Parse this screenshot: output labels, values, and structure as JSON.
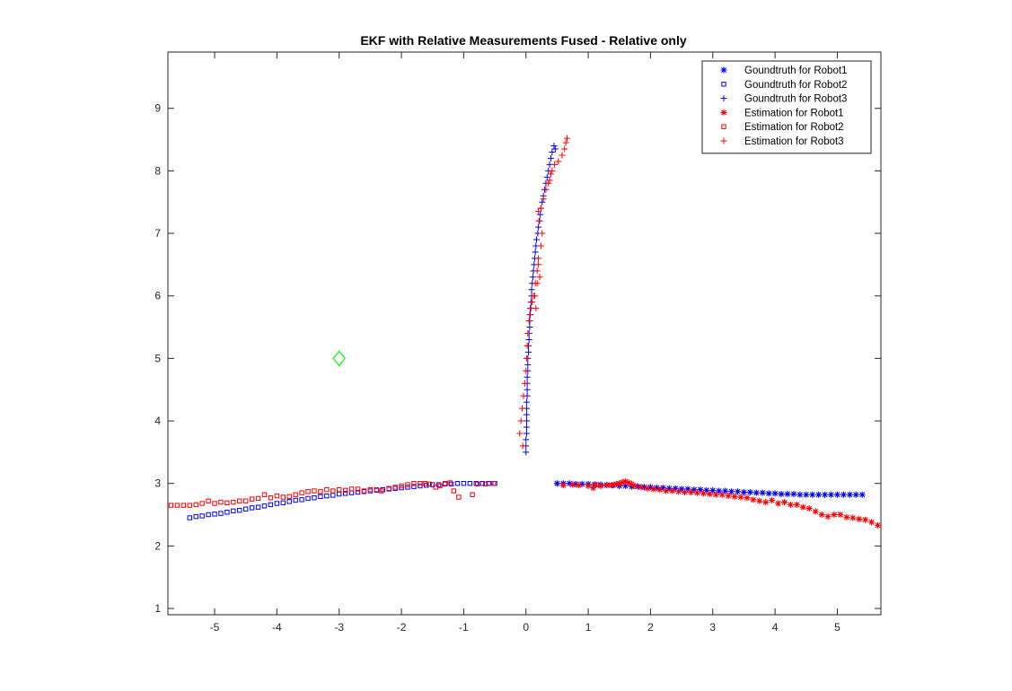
{
  "chart_data": {
    "type": "scatter",
    "title": "EKF with Relative Measurements Fused - Relative only",
    "xlabel": "",
    "ylabel": "",
    "xlim": [
      -5.75,
      5.7
    ],
    "ylim": [
      0.9,
      9.9
    ],
    "xticks": [
      -5,
      -4,
      -3,
      -2,
      -1,
      0,
      1,
      2,
      3,
      4,
      5
    ],
    "yticks": [
      1,
      2,
      3,
      4,
      5,
      6,
      7,
      8,
      9
    ],
    "grid": false,
    "legend_position": "top-right",
    "colors": {
      "blue": "#0000ff",
      "red": "#ff0000",
      "green": "#00ff00",
      "axis": "#262626"
    },
    "series": [
      {
        "name": "Goundtruth for Robot1",
        "marker": "asterisk",
        "color": "#0000ff",
        "x": [
          0.5,
          0.6,
          0.7,
          0.8,
          0.9,
          1.0,
          1.1,
          1.2,
          1.3,
          1.4,
          1.5,
          1.6,
          1.7,
          1.8,
          1.9,
          2.0,
          2.1,
          2.2,
          2.3,
          2.4,
          2.5,
          2.6,
          2.7,
          2.8,
          2.9,
          3.0,
          3.1,
          3.2,
          3.3,
          3.4,
          3.5,
          3.6,
          3.7,
          3.8,
          3.9,
          4.0,
          4.1,
          4.2,
          4.3,
          4.4,
          4.5,
          4.6,
          4.7,
          4.8,
          4.9,
          5.0,
          5.1,
          5.2,
          5.3,
          5.4
        ],
        "y": [
          3.0,
          3.0,
          3.0,
          2.99,
          2.99,
          2.99,
          2.98,
          2.98,
          2.97,
          2.97,
          2.96,
          2.96,
          2.95,
          2.95,
          2.94,
          2.94,
          2.93,
          2.93,
          2.92,
          2.92,
          2.91,
          2.91,
          2.9,
          2.9,
          2.89,
          2.89,
          2.88,
          2.88,
          2.87,
          2.87,
          2.86,
          2.86,
          2.85,
          2.85,
          2.84,
          2.84,
          2.83,
          2.83,
          2.83,
          2.82,
          2.82,
          2.82,
          2.82,
          2.82,
          2.82,
          2.82,
          2.82,
          2.82,
          2.82,
          2.82
        ]
      },
      {
        "name": "Goundtruth for Robot2",
        "marker": "square",
        "color": "#0000ff",
        "x": [
          -0.5,
          -0.6,
          -0.7,
          -0.8,
          -0.9,
          -1.0,
          -1.1,
          -1.2,
          -1.3,
          -1.4,
          -1.5,
          -1.6,
          -1.7,
          -1.8,
          -1.9,
          -2.0,
          -2.1,
          -2.2,
          -2.3,
          -2.4,
          -2.5,
          -2.6,
          -2.7,
          -2.8,
          -2.9,
          -3.0,
          -3.1,
          -3.2,
          -3.3,
          -3.4,
          -3.5,
          -3.6,
          -3.7,
          -3.8,
          -3.9,
          -4.0,
          -4.1,
          -4.2,
          -4.3,
          -4.4,
          -4.5,
          -4.6,
          -4.7,
          -4.8,
          -4.9,
          -5.0,
          -5.1,
          -5.2,
          -5.3,
          -5.4
        ],
        "y": [
          3.0,
          3.0,
          3.0,
          3.0,
          3.0,
          3.0,
          3.0,
          2.99,
          2.99,
          2.98,
          2.98,
          2.97,
          2.96,
          2.95,
          2.94,
          2.93,
          2.92,
          2.91,
          2.9,
          2.89,
          2.88,
          2.87,
          2.86,
          2.85,
          2.84,
          2.83,
          2.81,
          2.8,
          2.79,
          2.77,
          2.76,
          2.74,
          2.73,
          2.71,
          2.69,
          2.68,
          2.66,
          2.64,
          2.62,
          2.61,
          2.59,
          2.57,
          2.56,
          2.54,
          2.52,
          2.51,
          2.5,
          2.48,
          2.47,
          2.45
        ]
      },
      {
        "name": "Goundtruth for Robot3",
        "marker": "plus",
        "color": "#0000ff",
        "x": [
          0.0,
          0.0,
          0.0,
          0.01,
          0.01,
          0.01,
          0.01,
          0.01,
          0.01,
          0.02,
          0.02,
          0.02,
          0.02,
          0.03,
          0.03,
          0.03,
          0.04,
          0.04,
          0.05,
          0.05,
          0.06,
          0.06,
          0.07,
          0.07,
          0.08,
          0.09,
          0.09,
          0.1,
          0.11,
          0.12,
          0.13,
          0.14,
          0.15,
          0.16,
          0.17,
          0.19,
          0.2,
          0.21,
          0.23,
          0.24,
          0.26,
          0.28,
          0.3,
          0.32,
          0.34,
          0.36,
          0.38,
          0.4,
          0.42,
          0.45,
          0.47
        ],
        "y": [
          3.5,
          3.6,
          3.7,
          3.8,
          3.9,
          4.0,
          4.1,
          4.2,
          4.3,
          4.4,
          4.5,
          4.6,
          4.7,
          4.8,
          4.9,
          5.0,
          5.1,
          5.2,
          5.3,
          5.4,
          5.5,
          5.6,
          5.7,
          5.8,
          5.9,
          6.0,
          6.1,
          6.2,
          6.3,
          6.4,
          6.5,
          6.6,
          6.7,
          6.8,
          6.9,
          7.0,
          7.1,
          7.2,
          7.3,
          7.4,
          7.5,
          7.6,
          7.7,
          7.8,
          7.9,
          8.0,
          8.1,
          8.2,
          8.3,
          8.4,
          8.35
        ]
      },
      {
        "name": "Estimation for Robot1",
        "marker": "asterisk",
        "color": "#ff0000",
        "x": [
          0.6,
          0.75,
          0.85,
          1.0,
          1.08,
          1.12,
          1.2,
          1.3,
          1.38,
          1.45,
          1.5,
          1.55,
          1.6,
          1.65,
          1.7,
          1.75,
          1.85,
          1.95,
          2.05,
          2.15,
          2.25,
          2.35,
          2.45,
          2.55,
          2.65,
          2.75,
          2.85,
          2.95,
          3.05,
          3.15,
          3.25,
          3.35,
          3.45,
          3.55,
          3.65,
          3.75,
          3.85,
          3.95,
          4.05,
          4.15,
          4.25,
          4.35,
          4.45,
          4.55,
          4.65,
          4.75,
          4.85,
          4.95,
          5.05,
          5.15,
          5.25,
          5.35,
          5.45,
          5.55,
          5.65
        ],
        "y": [
          2.97,
          2.98,
          2.97,
          2.96,
          2.93,
          2.98,
          2.96,
          2.98,
          2.97,
          2.99,
          3.0,
          3.02,
          3.03,
          3.01,
          2.99,
          2.96,
          2.94,
          2.92,
          2.91,
          2.9,
          2.88,
          2.88,
          2.87,
          2.86,
          2.86,
          2.85,
          2.84,
          2.83,
          2.82,
          2.82,
          2.8,
          2.79,
          2.78,
          2.77,
          2.74,
          2.72,
          2.7,
          2.73,
          2.68,
          2.7,
          2.66,
          2.66,
          2.62,
          2.6,
          2.55,
          2.5,
          2.47,
          2.5,
          2.5,
          2.46,
          2.45,
          2.43,
          2.42,
          2.38,
          2.33
        ]
      },
      {
        "name": "Estimation for Robot2",
        "marker": "square",
        "color": "#ff0000",
        "x": [
          -0.52,
          -0.65,
          -0.78,
          -0.86,
          -1.08,
          -1.16,
          -1.22,
          -1.3,
          -1.38,
          -1.45,
          -1.55,
          -1.62,
          -1.7,
          -1.8,
          -1.9,
          -2.0,
          -2.1,
          -2.2,
          -2.32,
          -2.4,
          -2.5,
          -2.6,
          -2.7,
          -2.8,
          -2.9,
          -3.0,
          -3.1,
          -3.2,
          -3.3,
          -3.4,
          -3.5,
          -3.6,
          -3.7,
          -3.8,
          -3.9,
          -4.0,
          -4.1,
          -4.2,
          -4.3,
          -4.4,
          -4.5,
          -4.6,
          -4.7,
          -4.8,
          -4.9,
          -5.0,
          -5.1,
          -5.2,
          -5.3,
          -5.4,
          -5.5,
          -5.6,
          -5.7
        ],
        "y": [
          3.0,
          2.99,
          2.99,
          2.82,
          2.78,
          2.88,
          3.01,
          3.0,
          2.96,
          2.94,
          2.99,
          3.0,
          3.0,
          3.0,
          2.98,
          2.96,
          2.94,
          2.92,
          2.88,
          2.9,
          2.9,
          2.88,
          2.91,
          2.91,
          2.89,
          2.9,
          2.88,
          2.9,
          2.87,
          2.88,
          2.87,
          2.85,
          2.82,
          2.79,
          2.78,
          2.8,
          2.77,
          2.82,
          2.76,
          2.75,
          2.72,
          2.72,
          2.7,
          2.69,
          2.7,
          2.68,
          2.72,
          2.68,
          2.66,
          2.65,
          2.65,
          2.65,
          2.65
        ]
      },
      {
        "name": "Estimation for Robot3",
        "marker": "plus",
        "color": "#ff0000",
        "x": [
          -0.1,
          -0.05,
          -0.08,
          -0.06,
          -0.04,
          -0.02,
          0.0,
          0.01,
          0.02,
          0.03,
          0.05,
          0.06,
          0.08,
          0.1,
          0.12,
          0.15,
          0.18,
          0.2,
          0.22,
          0.18,
          0.14,
          0.16,
          0.2,
          0.24,
          0.26,
          0.22,
          0.2,
          0.24,
          0.28,
          0.32,
          0.36,
          0.38,
          0.4,
          0.42,
          0.46,
          0.52,
          0.58,
          0.62,
          0.64,
          0.66
        ],
        "y": [
          3.8,
          3.6,
          4.0,
          4.2,
          4.4,
          4.6,
          4.8,
          5.0,
          5.2,
          5.4,
          5.6,
          5.7,
          5.8,
          5.9,
          6.0,
          6.2,
          6.4,
          6.5,
          6.3,
          6.2,
          6.0,
          5.8,
          6.6,
          6.8,
          7.0,
          7.2,
          7.35,
          7.4,
          7.55,
          7.7,
          7.8,
          7.85,
          7.95,
          8.0,
          8.1,
          8.15,
          8.25,
          8.35,
          8.45,
          8.52
        ]
      },
      {
        "name": "",
        "marker": "diamond",
        "color": "#00ff00",
        "x": [
          -3.0
        ],
        "y": [
          5.0
        ]
      }
    ]
  }
}
